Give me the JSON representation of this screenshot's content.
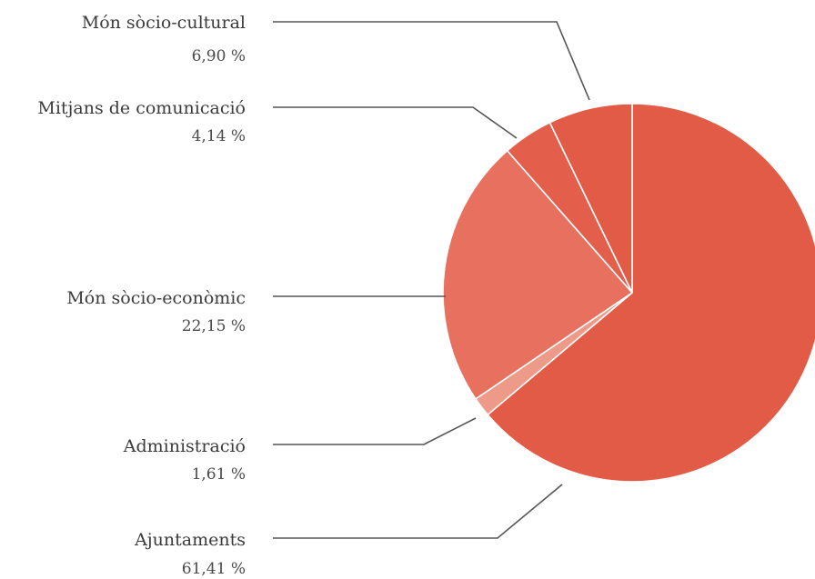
{
  "chart_data": {
    "type": "pie",
    "start": "12 o'clock",
    "direction": "clockwise",
    "slices": [
      {
        "label": "Ajuntaments",
        "value": 61.41,
        "display": "61,41  %",
        "color": "#e25b47"
      },
      {
        "label": "Administració",
        "value": 1.61,
        "display": "1,61  %",
        "color": "#ee9a88"
      },
      {
        "label": "Món sòcio-econòmic",
        "value": 22.15,
        "display": "22,15  %",
        "color": "#e7705f"
      },
      {
        "label": "Mitjans de comunicació",
        "value": 4.14,
        "display": "4,14  %",
        "color": "#e35f4c"
      },
      {
        "label": "Món sòcio-cultural",
        "value": 6.9,
        "display": "6,90  %",
        "color": "#e25b47"
      }
    ]
  }
}
